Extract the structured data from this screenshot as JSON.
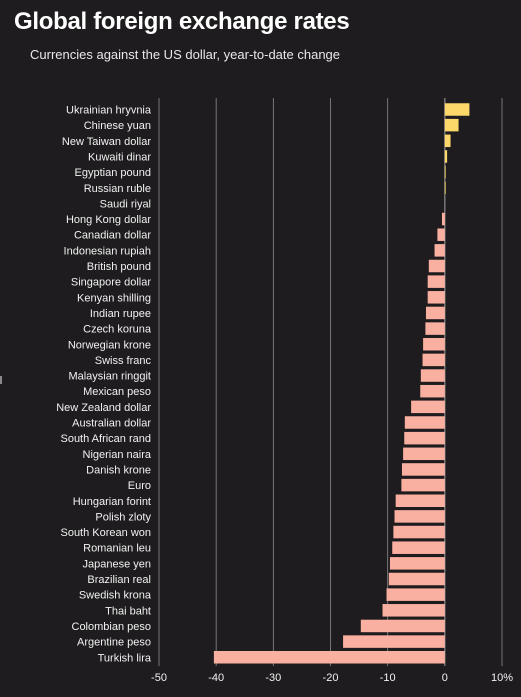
{
  "header": {
    "title": "Global foreign exchange rates",
    "subtitle": "Currencies against the US dollar, year-to-date change"
  },
  "colors": {
    "background": "#1e1c1e",
    "positive": "#fcd86b",
    "negative": "#f9b0a0",
    "grid": "#8d8d8d",
    "text": "#f2f2f2"
  },
  "chart_data": {
    "type": "bar",
    "orientation": "horizontal",
    "title": "Global foreign exchange rates",
    "subtitle": "Currencies against the US dollar, year-to-date change",
    "xlabel": "",
    "ylabel": "",
    "xlim": [
      -50,
      10
    ],
    "x_ticks": [
      {
        "value": -50,
        "label": "-50"
      },
      {
        "value": -40,
        "label": "-40"
      },
      {
        "value": -30,
        "label": "-30"
      },
      {
        "value": -20,
        "label": "-20"
      },
      {
        "value": -10,
        "label": "-10"
      },
      {
        "value": 0,
        "label": "0"
      },
      {
        "value": 10,
        "label": "10%"
      }
    ],
    "grid": true,
    "categories": [
      "Ukrainian hryvnia",
      "Chinese yuan",
      "New Taiwan dollar",
      "Kuwaiti dinar",
      "Egyptian pound",
      "Russian ruble",
      "Saudi riyal",
      "Hong Kong dollar",
      "Canadian dollar",
      "Indonesian rupiah",
      "British pound",
      "Singapore dollar",
      "Kenyan shilling",
      "Indian rupee",
      "Czech koruna",
      "Norwegian krone",
      "Swiss franc",
      "Malaysian ringgit",
      "Mexican peso",
      "New Zealand dollar",
      "Australian dollar",
      "South African rand",
      "Nigerian naira",
      "Danish krone",
      "Euro",
      "Hungarian forint",
      "Polish zloty",
      "South Korean won",
      "Romanian leu",
      "Japanese yen",
      "Brazilian real",
      "Swedish krona",
      "Thai baht",
      "Colombian peso",
      "Argentine peso",
      "Turkish lira"
    ],
    "values": [
      4.3,
      2.4,
      1.0,
      0.4,
      0.1,
      0.05,
      0.0,
      -0.5,
      -1.3,
      -1.8,
      -2.8,
      -3.0,
      -3.0,
      -3.3,
      -3.4,
      -3.8,
      -3.9,
      -4.2,
      -4.3,
      -5.9,
      -7.0,
      -7.1,
      -7.3,
      -7.5,
      -7.6,
      -8.6,
      -8.8,
      -9.0,
      -9.2,
      -9.6,
      -9.8,
      -10.2,
      -10.9,
      -14.7,
      -17.8,
      -40.4
    ]
  }
}
